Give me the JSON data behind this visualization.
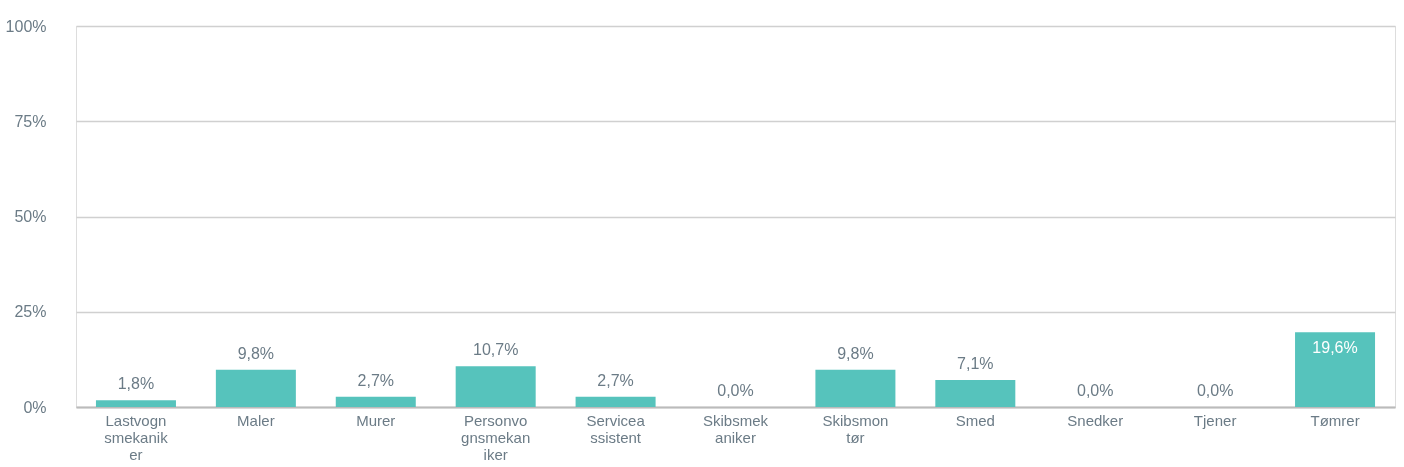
{
  "chart_data": {
    "type": "bar",
    "categories": [
      "Lastvognsmekaniker",
      "Maler",
      "Murer",
      "Personvognsmekaniker",
      "Serviceassistent",
      "Skibsmekaniker",
      "Skibsmontør",
      "Smed",
      "Snedker",
      "Tjener",
      "Tømrer"
    ],
    "values": [
      1.8,
      9.8,
      2.7,
      10.7,
      2.7,
      0.0,
      9.8,
      7.1,
      0.0,
      0.0,
      19.6
    ],
    "value_labels": [
      "1,8%",
      "9,8%",
      "2,7%",
      "10,7%",
      "2,7%",
      "0,0%",
      "9,8%",
      "7,1%",
      "0,0%",
      "0,0%",
      "19,6%"
    ],
    "color": "#56c3bc",
    "ylim": [
      0,
      100
    ],
    "yticks": [
      {
        "value": 0,
        "label": "0%"
      },
      {
        "value": 25,
        "label": "25%"
      },
      {
        "value": 50,
        "label": "50%"
      },
      {
        "value": 75,
        "label": "75%"
      },
      {
        "value": 100,
        "label": "100%"
      }
    ],
    "grid": "y"
  }
}
